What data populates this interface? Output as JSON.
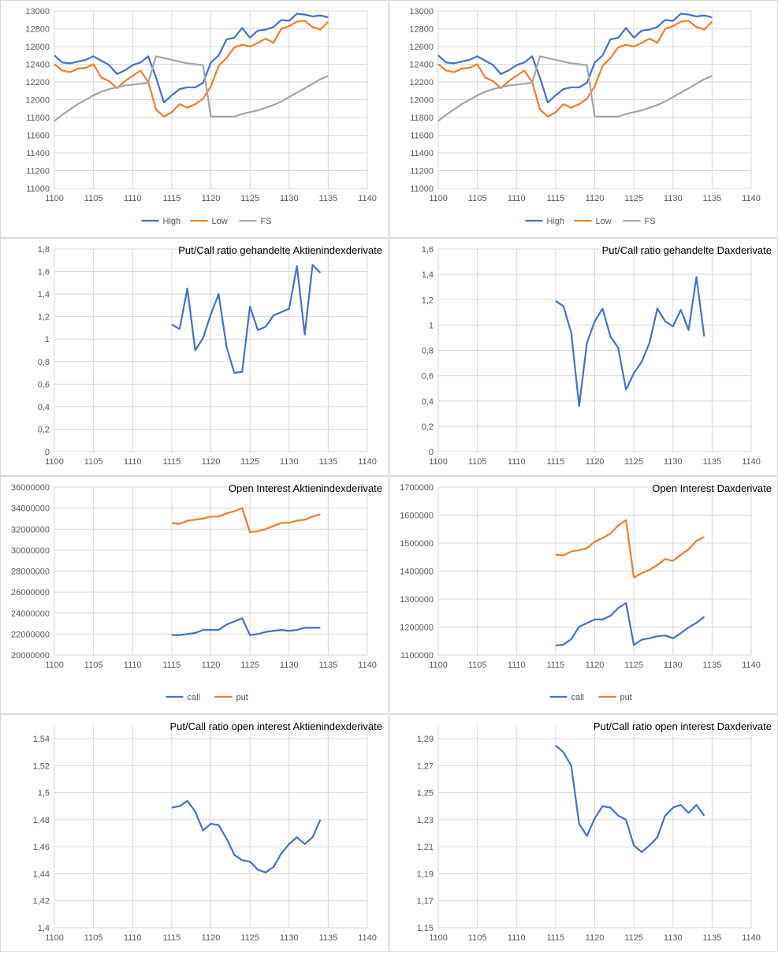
{
  "colors": {
    "blue": "#4472C4",
    "orange": "#ED7D31",
    "gray": "#A5A5A5",
    "grid": "#D9D9D9"
  },
  "chart_data": [
    {
      "type": "line",
      "title": "",
      "legend": "bottom",
      "grid": true,
      "xlim": [
        1100,
        1140
      ],
      "xticks": [
        "1100",
        "1105",
        "1110",
        "1115",
        "1120",
        "1125",
        "1130",
        "1135",
        "1140"
      ],
      "ylim": [
        11000,
        13000
      ],
      "yticks": [
        "11000",
        "11200",
        "11400",
        "11600",
        "11800",
        "12000",
        "12200",
        "12400",
        "12600",
        "12800",
        "13000"
      ],
      "x_start": 1100,
      "series": [
        {
          "name": "High",
          "color": "#4472C4",
          "values": [
            12500,
            12420,
            12410,
            12430,
            12450,
            12490,
            12440,
            12390,
            12290,
            12330,
            12390,
            12420,
            12490,
            12250,
            11970,
            12050,
            12120,
            12140,
            12140,
            12190,
            12420,
            12500,
            12680,
            12700,
            12810,
            12700,
            12780,
            12790,
            12820,
            12900,
            12890,
            12970,
            12960,
            12940,
            12950,
            12930
          ]
        },
        {
          "name": "Low",
          "color": "#ED7D31",
          "values": [
            12400,
            12330,
            12310,
            12350,
            12360,
            12400,
            12250,
            12210,
            12130,
            12210,
            12270,
            12330,
            12200,
            11890,
            11810,
            11860,
            11950,
            11910,
            11950,
            12010,
            12150,
            12380,
            12470,
            12590,
            12620,
            12600,
            12640,
            12690,
            12640,
            12800,
            12830,
            12880,
            12890,
            12820,
            12790,
            12880
          ]
        },
        {
          "name": "FS",
          "color": "#A5A5A5",
          "values": [
            11760,
            11830,
            11890,
            11950,
            12000,
            12050,
            12090,
            12120,
            12140,
            12160,
            12170,
            12180,
            12190,
            12490,
            12470,
            12450,
            12430,
            12410,
            12400,
            12390,
            11810,
            11810,
            11810,
            11810,
            11840,
            11860,
            11880,
            11910,
            11940,
            11980,
            12030,
            12080,
            12130,
            12180,
            12230,
            12270
          ]
        }
      ]
    },
    {
      "type": "line",
      "title": "",
      "legend": "bottom",
      "grid": true,
      "xlim": [
        1100,
        1140
      ],
      "xticks": [
        "1100",
        "1105",
        "1110",
        "1115",
        "1120",
        "1125",
        "1130",
        "1135",
        "1140"
      ],
      "ylim": [
        11000,
        13000
      ],
      "yticks": [
        "11000",
        "11200",
        "11400",
        "11600",
        "11800",
        "12000",
        "12200",
        "12400",
        "12600",
        "12800",
        "13000"
      ],
      "x_start": 1100,
      "series": [
        {
          "name": "High",
          "color": "#4472C4",
          "values": [
            12500,
            12420,
            12410,
            12430,
            12450,
            12490,
            12440,
            12390,
            12290,
            12330,
            12390,
            12420,
            12490,
            12250,
            11970,
            12050,
            12120,
            12140,
            12140,
            12190,
            12420,
            12500,
            12680,
            12700,
            12810,
            12700,
            12780,
            12790,
            12820,
            12900,
            12890,
            12970,
            12960,
            12940,
            12950,
            12930
          ]
        },
        {
          "name": "Low",
          "color": "#ED7D31",
          "values": [
            12400,
            12330,
            12310,
            12350,
            12360,
            12400,
            12250,
            12210,
            12130,
            12210,
            12270,
            12330,
            12200,
            11890,
            11810,
            11860,
            11950,
            11910,
            11950,
            12010,
            12150,
            12380,
            12470,
            12590,
            12620,
            12600,
            12640,
            12690,
            12640,
            12800,
            12830,
            12880,
            12890,
            12820,
            12790,
            12880
          ]
        },
        {
          "name": "FS",
          "color": "#A5A5A5",
          "values": [
            11760,
            11830,
            11890,
            11950,
            12000,
            12050,
            12090,
            12120,
            12140,
            12160,
            12170,
            12180,
            12190,
            12490,
            12470,
            12450,
            12430,
            12410,
            12400,
            12390,
            11810,
            11810,
            11810,
            11810,
            11840,
            11860,
            11880,
            11910,
            11940,
            11980,
            12030,
            12080,
            12130,
            12180,
            12230,
            12270
          ]
        }
      ]
    },
    {
      "type": "line",
      "title": "Put/Call ratio gehandelte Aktienindexderivate",
      "grid": true,
      "xlim": [
        1100,
        1140
      ],
      "xticks": [
        "1100",
        "1105",
        "1110",
        "1115",
        "1120",
        "1125",
        "1130",
        "1135",
        "1140"
      ],
      "ylim": [
        0,
        1.8
      ],
      "yticks": [
        "0",
        "0,2",
        "0,4",
        "0,6",
        "0,8",
        "1",
        "1,2",
        "1,4",
        "1,6",
        "1,8"
      ],
      "x_start": 1115,
      "series": [
        {
          "color": "#4472C4",
          "values": [
            1.13,
            1.09,
            1.45,
            0.9,
            1.01,
            1.22,
            1.4,
            0.93,
            0.7,
            0.71,
            1.29,
            1.08,
            1.11,
            1.21,
            1.24,
            1.27,
            1.65,
            1.04,
            1.66,
            1.59
          ]
        }
      ]
    },
    {
      "type": "line",
      "title": "Put/Call ratio gehandelte Daxderivate",
      "grid": true,
      "xlim": [
        1100,
        1140
      ],
      "xticks": [
        "1100",
        "1105",
        "1110",
        "1115",
        "1120",
        "1125",
        "1130",
        "1135",
        "1140"
      ],
      "ylim": [
        0,
        1.6
      ],
      "yticks": [
        "0",
        "0,2",
        "0,4",
        "0,6",
        "0,8",
        "1",
        "1,2",
        "1,4",
        "1,6"
      ],
      "x_start": 1115,
      "series": [
        {
          "color": "#4472C4",
          "values": [
            1.19,
            1.15,
            0.94,
            0.36,
            0.86,
            1.03,
            1.13,
            0.91,
            0.82,
            0.49,
            0.62,
            0.71,
            0.86,
            1.13,
            1.03,
            0.99,
            1.12,
            0.96,
            1.38,
            0.91
          ]
        }
      ]
    },
    {
      "type": "line",
      "title": "Open Interest Aktienindexderivate",
      "legend": "bottom",
      "grid": true,
      "xlim": [
        1100,
        1140
      ],
      "xticks": [
        "1100",
        "1105",
        "1110",
        "1115",
        "1120",
        "1125",
        "1130",
        "1135",
        "1140"
      ],
      "ylim": [
        20000000,
        36000000
      ],
      "yticks": [
        "20000000",
        "22000000",
        "24000000",
        "26000000",
        "28000000",
        "30000000",
        "32000000",
        "34000000",
        "36000000"
      ],
      "x_start": 1115,
      "series": [
        {
          "name": "call",
          "color": "#4472C4",
          "values": [
            21900000,
            21900000,
            22000000,
            22100000,
            22400000,
            22400000,
            22400000,
            22900000,
            23200000,
            23500000,
            21900000,
            22000000,
            22200000,
            22300000,
            22400000,
            22300000,
            22400000,
            22600000,
            22600000,
            22600000
          ]
        },
        {
          "name": "put",
          "color": "#ED7D31",
          "values": [
            32600000,
            32500000,
            32800000,
            32900000,
            33000000,
            33200000,
            33200000,
            33500000,
            33700000,
            34000000,
            31700000,
            31800000,
            32000000,
            32300000,
            32600000,
            32600000,
            32800000,
            32900000,
            33200000,
            33400000
          ]
        }
      ]
    },
    {
      "type": "line",
      "title": "Open Interest Daxderivate",
      "legend": "bottom",
      "grid": true,
      "xlim": [
        1100,
        1140
      ],
      "xticks": [
        "1100",
        "1105",
        "1110",
        "1115",
        "1120",
        "1125",
        "1130",
        "1135",
        "1140"
      ],
      "ylim": [
        1100000,
        1700000
      ],
      "yticks": [
        "1100000",
        "1200000",
        "1300000",
        "1400000",
        "1500000",
        "1600000",
        "1700000"
      ],
      "x_start": 1115,
      "series": [
        {
          "name": "call",
          "color": "#4472C4",
          "values": [
            1134000,
            1137000,
            1157000,
            1201000,
            1214000,
            1227000,
            1227000,
            1240000,
            1268000,
            1286000,
            1136000,
            1155000,
            1160000,
            1167000,
            1170000,
            1160000,
            1178000,
            1199000,
            1215000,
            1237000
          ]
        },
        {
          "name": "put",
          "color": "#ED7D31",
          "values": [
            1459000,
            1456000,
            1470000,
            1475000,
            1482000,
            1505000,
            1518000,
            1534000,
            1563000,
            1582000,
            1377000,
            1393000,
            1404000,
            1422000,
            1443000,
            1437000,
            1458000,
            1478000,
            1508000,
            1522000
          ]
        }
      ]
    },
    {
      "type": "line",
      "title": "Put/Call ratio open interest Aktienindexderivate",
      "grid": true,
      "xlim": [
        1100,
        1140
      ],
      "xticks": [
        "1100",
        "1105",
        "1110",
        "1115",
        "1120",
        "1125",
        "1130",
        "1135",
        "1140"
      ],
      "ylim": [
        1.4,
        1.55
      ],
      "yticks": [
        "1,4",
        "1,42",
        "1,44",
        "1,46",
        "1,48",
        "1,5",
        "1,52",
        "1,54"
      ],
      "x_start": 1115,
      "series": [
        {
          "color": "#4472C4",
          "values": [
            1.489,
            1.49,
            1.494,
            1.486,
            1.472,
            1.477,
            1.476,
            1.466,
            1.454,
            1.45,
            1.449,
            1.443,
            1.441,
            1.445,
            1.455,
            1.462,
            1.467,
            1.462,
            1.467,
            1.48
          ]
        }
      ]
    },
    {
      "type": "line",
      "title": "Put/Call ratio open interest Daxderivate",
      "grid": true,
      "xlim": [
        1100,
        1140
      ],
      "xticks": [
        "1100",
        "1105",
        "1110",
        "1115",
        "1120",
        "1125",
        "1130",
        "1135",
        "1140"
      ],
      "ylim": [
        1.15,
        1.3
      ],
      "yticks": [
        "1,15",
        "1,17",
        "1,19",
        "1,21",
        "1,23",
        "1,25",
        "1,27",
        "1,29"
      ],
      "x_start": 1115,
      "series": [
        {
          "color": "#4472C4",
          "values": [
            1.285,
            1.28,
            1.27,
            1.227,
            1.218,
            1.231,
            1.24,
            1.239,
            1.233,
            1.23,
            1.211,
            1.206,
            1.211,
            1.217,
            1.233,
            1.239,
            1.241,
            1.235,
            1.241,
            1.233
          ]
        }
      ]
    }
  ]
}
